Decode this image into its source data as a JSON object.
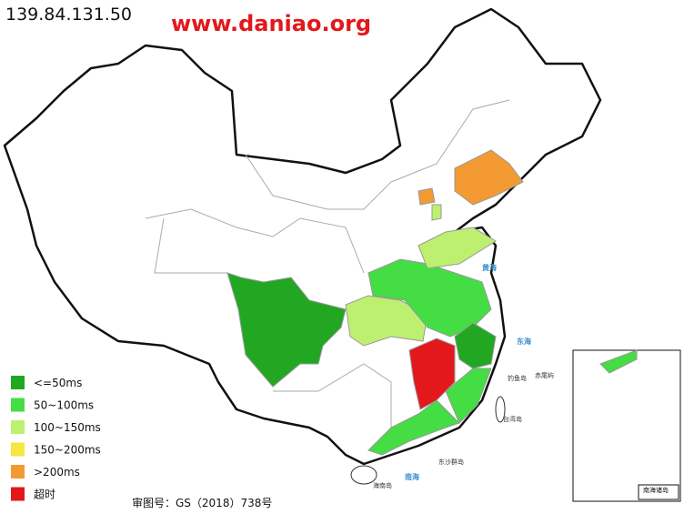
{
  "header": {
    "ip": "139.84.131.50",
    "site": "www.daniao.org"
  },
  "legend": [
    {
      "label": "<=50ms",
      "color": "#22a722"
    },
    {
      "label": "50~100ms",
      "color": "#44dd44"
    },
    {
      "label": "100~150ms",
      "color": "#bef070"
    },
    {
      "label": "150~200ms",
      "color": "#f5e642"
    },
    {
      "label": ">200ms",
      "color": "#f39a33"
    },
    {
      "label": "超时",
      "color": "#e3181b"
    }
  ],
  "map_labels": [
    "黄海",
    "东海",
    "南海",
    "台湾岛",
    "海南岛",
    "东沙群岛",
    "钓鱼岛",
    "赤尾屿",
    "南海诸岛"
  ],
  "footer": "审图号：GS（2018）738号"
}
